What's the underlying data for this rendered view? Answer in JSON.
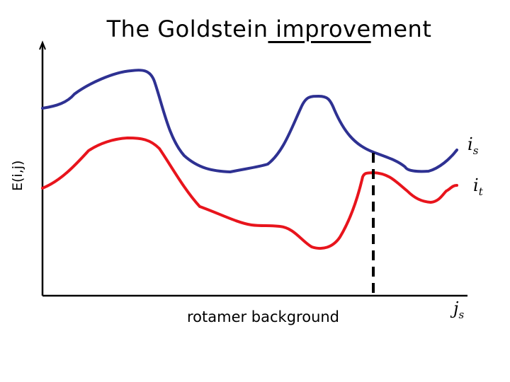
{
  "title": {
    "before": "The Goldstein",
    "underlined": " improve",
    "after": "ment"
  },
  "y_axis_label": "E(i,j)",
  "x_axis_label": "rotamer background",
  "curve_labels": {
    "is": {
      "base": "i",
      "sub": "s"
    },
    "it": {
      "base": "i",
      "sub": "t"
    }
  },
  "marker_label": {
    "base": "j",
    "sub": "s"
  },
  "colors": {
    "curve_is": "#2e3192",
    "curve_it": "#e8141c",
    "axes": "#000000"
  }
}
